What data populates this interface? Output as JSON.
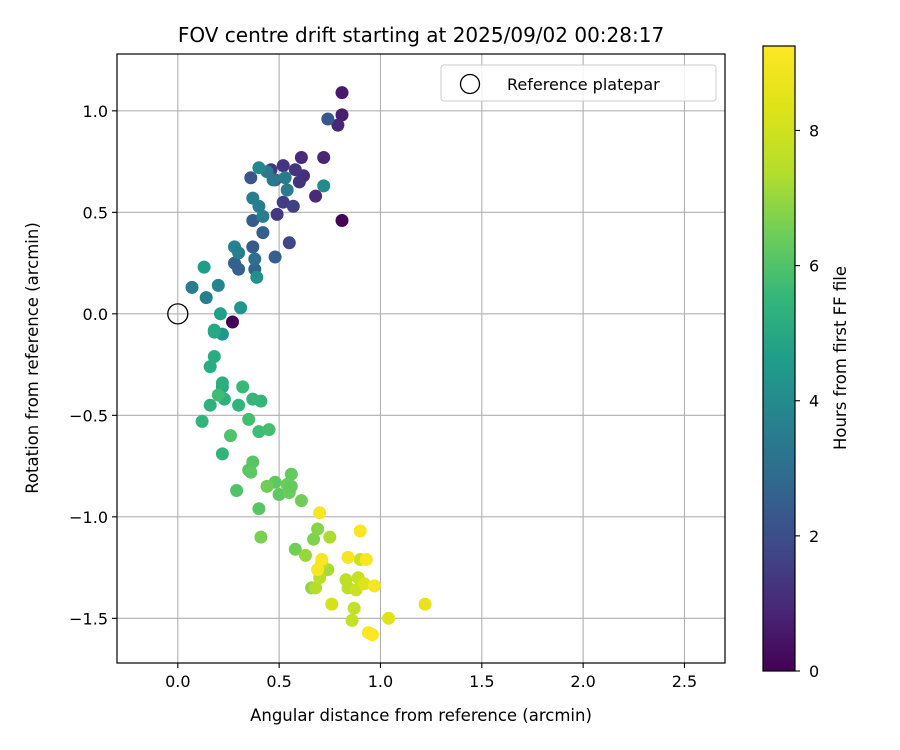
{
  "chart_data": {
    "type": "scatter",
    "title": "FOV centre drift starting at 2025/09/02 00:28:17",
    "xlabel": "Angular distance from reference (arcmin)",
    "ylabel": "Rotation from reference (arcmin)",
    "xlim": [
      -0.3,
      2.7
    ],
    "ylim": [
      -1.72,
      1.28
    ],
    "xticks": [
      0.0,
      0.5,
      1.0,
      1.5,
      2.0,
      2.5
    ],
    "xtick_labels": [
      "0.0",
      "0.5",
      "1.0",
      "1.5",
      "2.0",
      "2.5"
    ],
    "yticks": [
      1.0,
      0.5,
      0.0,
      -0.5,
      -1.0,
      -1.5
    ],
    "ytick_labels": [
      "1.0",
      "0.5",
      "0.0",
      "−0.5",
      "−1.0",
      "−1.5"
    ],
    "grid": true,
    "legend": {
      "position": "top-right",
      "entries": [
        {
          "label": "Reference platepar",
          "marker": "open-circle"
        }
      ]
    },
    "reference_point": {
      "x": 0.0,
      "y": 0.0
    },
    "colorbar": {
      "label": "Hours from first FF file",
      "colormap": "viridis",
      "range": [
        0,
        9.25
      ],
      "ticks": [
        0,
        2,
        4,
        6,
        8
      ],
      "tick_labels": [
        "0",
        "2",
        "4",
        "6",
        "8"
      ]
    },
    "points": [
      [
        0.81,
        0.46,
        0.1
      ],
      [
        0.27,
        -0.04,
        0.1
      ],
      [
        0.81,
        1.09,
        0.6
      ],
      [
        0.81,
        0.98,
        0.7
      ],
      [
        0.79,
        0.93,
        0.9
      ],
      [
        0.72,
        0.77,
        0.9
      ],
      [
        0.61,
        0.77,
        1.0
      ],
      [
        0.68,
        0.58,
        1.0
      ],
      [
        0.62,
        0.68,
        1.1
      ],
      [
        0.6,
        0.65,
        1.2
      ],
      [
        0.52,
        0.73,
        1.3
      ],
      [
        0.46,
        0.71,
        1.4
      ],
      [
        0.58,
        0.71,
        1.3
      ],
      [
        0.49,
        0.49,
        1.4
      ],
      [
        0.52,
        0.55,
        1.5
      ],
      [
        0.57,
        0.53,
        1.6
      ],
      [
        0.55,
        0.35,
        1.8
      ],
      [
        0.74,
        0.96,
        2.3
      ],
      [
        0.36,
        0.67,
        2.2
      ],
      [
        0.48,
        0.66,
        2.3
      ],
      [
        0.37,
        0.33,
        2.4
      ],
      [
        0.42,
        0.4,
        2.5
      ],
      [
        0.37,
        0.46,
        2.4
      ],
      [
        0.48,
        0.28,
        2.5
      ],
      [
        0.28,
        0.25,
        2.6
      ],
      [
        0.3,
        0.22,
        2.6
      ],
      [
        0.38,
        0.22,
        2.7
      ],
      [
        0.38,
        0.27,
        3.0
      ],
      [
        0.47,
        0.66,
        3.3
      ],
      [
        0.44,
        0.7,
        3.4
      ],
      [
        0.53,
        0.67,
        3.4
      ],
      [
        0.54,
        0.61,
        3.5
      ],
      [
        0.4,
        0.53,
        3.5
      ],
      [
        0.42,
        0.48,
        3.6
      ],
      [
        0.37,
        0.57,
        3.6
      ],
      [
        0.28,
        0.33,
        3.7
      ],
      [
        0.3,
        0.3,
        3.6
      ],
      [
        0.07,
        0.13,
        3.5
      ],
      [
        0.14,
        0.08,
        3.6
      ],
      [
        0.2,
        0.14,
        3.8
      ],
      [
        0.4,
        0.72,
        3.9
      ],
      [
        0.72,
        0.63,
        4.0
      ],
      [
        0.39,
        0.18,
        4.2
      ],
      [
        0.31,
        0.03,
        4.3
      ],
      [
        0.22,
        -0.1,
        4.4
      ],
      [
        0.13,
        0.23,
        4.6
      ],
      [
        0.21,
        0.0,
        4.7
      ],
      [
        0.18,
        -0.08,
        4.9
      ],
      [
        0.18,
        -0.09,
        5.0
      ],
      [
        0.22,
        -0.36,
        5.0
      ],
      [
        0.18,
        -0.21,
        5.1
      ],
      [
        0.16,
        -0.26,
        5.1
      ],
      [
        0.22,
        -0.34,
        5.2
      ],
      [
        0.16,
        -0.45,
        5.3
      ],
      [
        0.23,
        -0.42,
        5.3
      ],
      [
        0.3,
        -0.45,
        5.4
      ],
      [
        0.12,
        -0.53,
        5.4
      ],
      [
        0.22,
        -0.69,
        5.4
      ],
      [
        0.37,
        -0.42,
        5.5
      ],
      [
        0.41,
        -0.43,
        5.5
      ],
      [
        0.32,
        -0.36,
        5.6
      ],
      [
        0.2,
        -0.4,
        5.7
      ],
      [
        0.35,
        -0.52,
        5.8
      ],
      [
        0.4,
        -0.58,
        5.7
      ],
      [
        0.45,
        -0.57,
        5.8
      ],
      [
        0.26,
        -0.6,
        6.0
      ],
      [
        0.29,
        -0.87,
        6.0
      ],
      [
        0.4,
        -0.96,
        6.1
      ],
      [
        0.37,
        -0.73,
        6.1
      ],
      [
        0.35,
        -0.77,
        6.1
      ],
      [
        0.36,
        -0.78,
        6.2
      ],
      [
        0.48,
        -0.83,
        6.2
      ],
      [
        0.56,
        -0.79,
        6.3
      ],
      [
        0.5,
        -0.89,
        6.2
      ],
      [
        0.55,
        -0.88,
        6.4
      ],
      [
        0.54,
        -0.84,
        6.4
      ],
      [
        0.56,
        -0.85,
        6.3
      ],
      [
        0.44,
        -0.85,
        6.5
      ],
      [
        0.61,
        -0.92,
        6.5
      ],
      [
        0.58,
        -1.16,
        6.5
      ],
      [
        0.41,
        -1.1,
        6.6
      ],
      [
        0.67,
        -1.11,
        6.7
      ],
      [
        0.69,
        -1.06,
        6.8
      ],
      [
        0.66,
        -1.35,
        6.9
      ],
      [
        0.63,
        -1.19,
        7.0
      ],
      [
        0.74,
        -1.26,
        7.2
      ],
      [
        0.75,
        -1.1,
        7.3
      ],
      [
        0.68,
        -1.35,
        7.4
      ],
      [
        0.7,
        -1.3,
        7.5
      ],
      [
        0.71,
        -1.23,
        7.6
      ],
      [
        0.83,
        -1.31,
        7.6
      ],
      [
        0.84,
        -1.35,
        7.6
      ],
      [
        0.86,
        -1.51,
        7.7
      ],
      [
        0.87,
        -1.45,
        7.7
      ],
      [
        0.89,
        -1.3,
        7.8
      ],
      [
        0.9,
        -1.21,
        7.9
      ],
      [
        0.88,
        -1.36,
        7.9
      ],
      [
        0.76,
        -1.43,
        8.1
      ],
      [
        0.92,
        -1.33,
        8.3
      ],
      [
        1.04,
        -1.5,
        8.4
      ],
      [
        1.22,
        -1.43,
        8.6
      ],
      [
        0.7,
        -0.98,
        9.0
      ],
      [
        0.84,
        -1.2,
        9.0
      ],
      [
        0.9,
        -1.07,
        9.1
      ],
      [
        0.93,
        -1.21,
        9.1
      ],
      [
        0.97,
        -1.34,
        9.0
      ],
      [
        0.94,
        -1.57,
        9.2
      ],
      [
        0.96,
        -1.58,
        9.2
      ],
      [
        0.71,
        -1.21,
        9.1
      ],
      [
        0.69,
        -1.26,
        9.1
      ]
    ]
  }
}
